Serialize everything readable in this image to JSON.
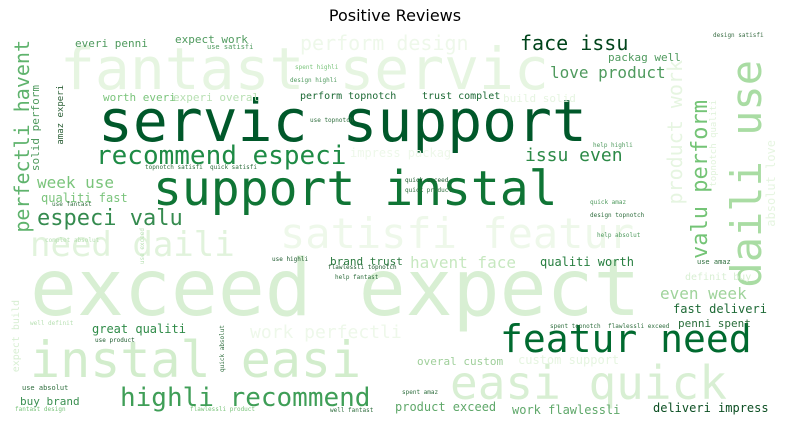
{
  "title": "Positive Reviews",
  "words": [
    {
      "text": "exceed expect",
      "color": "#d8efd3"
    },
    {
      "text": "fantast servic",
      "color": "#e6f5e1"
    },
    {
      "text": "servic support",
      "color": "#00582a"
    },
    {
      "text": "support instal",
      "color": "#0f7535"
    },
    {
      "text": "satisfi featur",
      "color": "#eef8ea"
    },
    {
      "text": "instal easi",
      "color": "#d2edcc"
    },
    {
      "text": "easi quick",
      "color": "#d8efd3"
    },
    {
      "text": "featur need",
      "color": "#006a2f"
    },
    {
      "text": "need daili",
      "color": "#e1f3dc"
    },
    {
      "text": "daili use",
      "color": "#a9dca3"
    },
    {
      "text": "recommend especi",
      "color": "#1e8b45"
    },
    {
      "text": "highli recommend",
      "color": "#3f9e57"
    },
    {
      "text": "especi valu",
      "color": "#358b4f"
    },
    {
      "text": "face issu",
      "color": "#00441b"
    },
    {
      "text": "love product",
      "color": "#4f9a5e"
    },
    {
      "text": "perform design",
      "color": "#eef8ea"
    },
    {
      "text": "issu even",
      "color": "#2c8a47"
    },
    {
      "text": "valu perform",
      "color": "#74c476"
    },
    {
      "text": "product work",
      "color": "#e6f5e1"
    },
    {
      "text": "perfectli havent",
      "color": "#5fb36d"
    },
    {
      "text": "week use",
      "color": "#7ac47b"
    },
    {
      "text": "even week",
      "color": "#9fd39b"
    },
    {
      "text": "work perfectli",
      "color": "#eef8ea"
    },
    {
      "text": "havent face",
      "color": "#c7e8c0"
    },
    {
      "text": "qualiti worth",
      "color": "#267e3f"
    },
    {
      "text": "fast deliveri",
      "color": "#1e6a36"
    },
    {
      "text": "penni spent",
      "color": "#2a6e3b"
    },
    {
      "text": "great qualiti",
      "color": "#2f8b48"
    },
    {
      "text": "deliveri impress",
      "color": "#0c4f23"
    },
    {
      "text": "work flawlessli",
      "color": "#5fa86a"
    },
    {
      "text": "product exceed",
      "color": "#5fa86a"
    },
    {
      "text": "overal custom",
      "color": "#9fcf9a"
    },
    {
      "text": "custom support",
      "color": "#e6f5e1"
    },
    {
      "text": "buy brand",
      "color": "#3a8f50"
    },
    {
      "text": "brand trust",
      "color": "#2c7a40"
    },
    {
      "text": "qualiti fast",
      "color": "#7ac47b"
    },
    {
      "text": "worth everi",
      "color": "#7ac47b"
    },
    {
      "text": "everi penni",
      "color": "#4f9a5e"
    },
    {
      "text": "expect work",
      "color": "#4f9a5e"
    },
    {
      "text": "packag well",
      "color": "#4f9a5e"
    },
    {
      "text": "experi overal",
      "color": "#b8e0b3"
    },
    {
      "text": "perform topnotch",
      "color": "#1d6a35"
    },
    {
      "text": "trust complet",
      "color": "#1d6a35"
    },
    {
      "text": "build solid",
      "color": "#e6f5e1"
    },
    {
      "text": "impress packag",
      "color": "#eef8ea"
    },
    {
      "text": "solid perform",
      "color": "#4f9a5e"
    },
    {
      "text": "amaz experi",
      "color": "#2a5e35"
    },
    {
      "text": "topnotch qualiti",
      "color": "#e1f3dc"
    },
    {
      "text": "absolut love",
      "color": "#e6f5e1"
    },
    {
      "text": "definit buy",
      "color": "#d8efd3"
    },
    {
      "text": "expect build",
      "color": "#d8efd3"
    },
    {
      "text": "use satisfi",
      "color": "#4f9a5e"
    },
    {
      "text": "design satisfi",
      "color": "#3a6e45"
    },
    {
      "text": "spent highli",
      "color": "#7ac47b"
    },
    {
      "text": "design highli",
      "color": "#4f9a5e"
    },
    {
      "text": "use topnotch",
      "color": "#2f6e3e"
    },
    {
      "text": "topnotch satisfi",
      "color": "#2f6e3e"
    },
    {
      "text": "quick satisfi",
      "color": "#2f6e3e"
    },
    {
      "text": "help highli",
      "color": "#4f9a5e"
    },
    {
      "text": "quick exceed",
      "color": "#1d5a2e"
    },
    {
      "text": "quick product",
      "color": "#2f6e3e"
    },
    {
      "text": "quick amaz",
      "color": "#4f9a5e"
    },
    {
      "text": "design topnotch",
      "color": "#2f6e3e"
    },
    {
      "text": "help absolut",
      "color": "#4f9a5e"
    },
    {
      "text": "use fantast",
      "color": "#2f6e3e"
    },
    {
      "text": "complet absolut",
      "color": "#b8e0b3"
    },
    {
      "text": "use exceed",
      "color": "#b8e0b3"
    },
    {
      "text": "use highli",
      "color": "#1d5a2e"
    },
    {
      "text": "flawlessli topnotch",
      "color": "#1d5a2e"
    },
    {
      "text": "help fantast",
      "color": "#2f6e3e"
    },
    {
      "text": "use amaz",
      "color": "#2f6e3e"
    },
    {
      "text": "well definit",
      "color": "#b8e0b3"
    },
    {
      "text": "spent topnotch",
      "color": "#2f6e3e"
    },
    {
      "text": "flawlessli exceed",
      "color": "#2f6e3e"
    },
    {
      "text": "use product",
      "color": "#1d5a2e"
    },
    {
      "text": "quick absolut",
      "color": "#2f6e3e"
    },
    {
      "text": "spent amaz",
      "color": "#2f6e3e"
    },
    {
      "text": "use absolut",
      "color": "#2f6e3e"
    },
    {
      "text": "flawlessli product",
      "color": "#7ac47b"
    },
    {
      "text": "well fantast",
      "color": "#2f6e3e"
    },
    {
      "text": "fantast design",
      "color": "#7ac47b"
    },
    {
      "text": "fantast servic",
      "color": "#d8efd3"
    }
  ]
}
